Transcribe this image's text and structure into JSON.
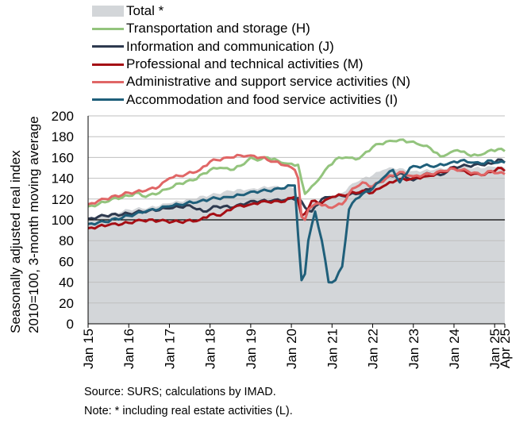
{
  "chart_data": {
    "type": "line",
    "title": "",
    "ylabel_lines": [
      "Seasonally adjusted real index",
      "2010=100, 3-month moving average"
    ],
    "xlabel": "",
    "ylim": [
      0,
      200
    ],
    "yticks": [
      0,
      20,
      40,
      60,
      80,
      100,
      120,
      140,
      160,
      180,
      200
    ],
    "xticks": [
      "Jan 15",
      "Jan 16",
      "Jan 17",
      "Jan 18",
      "Jan 19",
      "Jan 20",
      "Jan 21",
      "Jan 22",
      "Jan 23",
      "Jan 24",
      "Jan 25",
      "Apr 25"
    ],
    "x_range": [
      "2015-01",
      "2025-04"
    ],
    "grid": "horizontal",
    "reference_line": 100,
    "legend_position": "top-left",
    "series": [
      {
        "name": "Total *",
        "type": "area",
        "color": "#d3d6d9",
        "points": [
          [
            "2015-01",
            100
          ],
          [
            "2015-07",
            105
          ],
          [
            "2016-01",
            110
          ],
          [
            "2016-07",
            112
          ],
          [
            "2017-01",
            116
          ],
          [
            "2017-07",
            120
          ],
          [
            "2018-01",
            124
          ],
          [
            "2018-07",
            128
          ],
          [
            "2019-01",
            130
          ],
          [
            "2019-07",
            132
          ],
          [
            "2020-01",
            131
          ],
          [
            "2020-02",
            130
          ],
          [
            "2020-03",
            122
          ],
          [
            "2020-04",
            102
          ],
          [
            "2020-05",
            106
          ],
          [
            "2020-06",
            114
          ],
          [
            "2020-09",
            118
          ],
          [
            "2021-01",
            120
          ],
          [
            "2021-04",
            126
          ],
          [
            "2021-07",
            135
          ],
          [
            "2021-10",
            140
          ],
          [
            "2022-01",
            143
          ],
          [
            "2022-04",
            148
          ],
          [
            "2022-07",
            150
          ],
          [
            "2023-01",
            147
          ],
          [
            "2023-07",
            148
          ],
          [
            "2024-01",
            151
          ],
          [
            "2024-07",
            150
          ],
          [
            "2025-01",
            151
          ],
          [
            "2025-04",
            150
          ]
        ]
      },
      {
        "name": "Transportation and storage (H)",
        "type": "line",
        "color": "#93c47d",
        "points": [
          [
            "2015-01",
            113
          ],
          [
            "2015-04",
            115
          ],
          [
            "2015-08",
            120
          ],
          [
            "2016-01",
            123
          ],
          [
            "2016-03",
            126
          ],
          [
            "2016-06",
            122
          ],
          [
            "2017-01",
            130
          ],
          [
            "2017-04",
            135
          ],
          [
            "2017-08",
            138
          ],
          [
            "2018-01",
            148
          ],
          [
            "2018-04",
            150
          ],
          [
            "2018-07",
            148
          ],
          [
            "2018-10",
            152
          ],
          [
            "2019-01",
            160
          ],
          [
            "2019-03",
            157
          ],
          [
            "2019-06",
            160
          ],
          [
            "2019-09",
            157
          ],
          [
            "2019-12",
            154
          ],
          [
            "2020-03",
            153
          ],
          [
            "2020-04",
            138
          ],
          [
            "2020-05",
            125
          ],
          [
            "2020-06",
            128
          ],
          [
            "2020-08",
            135
          ],
          [
            "2020-11",
            148
          ],
          [
            "2021-02",
            158
          ],
          [
            "2021-05",
            160
          ],
          [
            "2021-08",
            158
          ],
          [
            "2021-10",
            162
          ],
          [
            "2022-01",
            170
          ],
          [
            "2022-03",
            173
          ],
          [
            "2022-06",
            176
          ],
          [
            "2022-09",
            177
          ],
          [
            "2022-12",
            175
          ],
          [
            "2023-03",
            172
          ],
          [
            "2023-06",
            169
          ],
          [
            "2023-09",
            161
          ],
          [
            "2023-12",
            165
          ],
          [
            "2024-02",
            167
          ],
          [
            "2024-05",
            163
          ],
          [
            "2024-08",
            162
          ],
          [
            "2024-11",
            166
          ],
          [
            "2025-02",
            168
          ],
          [
            "2025-04",
            166
          ]
        ]
      },
      {
        "name": "Information and communication (J)",
        "type": "line",
        "color": "#2e3a4f",
        "points": [
          [
            "2015-01",
            101
          ],
          [
            "2015-06",
            104
          ],
          [
            "2016-01",
            106
          ],
          [
            "2016-07",
            109
          ],
          [
            "2017-01",
            111
          ],
          [
            "2017-07",
            114
          ],
          [
            "2017-11",
            108
          ],
          [
            "2018-03",
            113
          ],
          [
            "2018-08",
            112
          ],
          [
            "2019-01",
            118
          ],
          [
            "2019-07",
            118
          ],
          [
            "2019-12",
            120
          ],
          [
            "2020-03",
            121
          ],
          [
            "2020-05",
            112
          ],
          [
            "2020-07",
            108
          ],
          [
            "2020-10",
            120
          ],
          [
            "2021-01",
            122
          ],
          [
            "2021-06",
            124
          ],
          [
            "2021-10",
            127
          ],
          [
            "2022-01",
            132
          ],
          [
            "2022-05",
            140
          ],
          [
            "2022-09",
            145
          ],
          [
            "2023-01",
            138
          ],
          [
            "2023-05",
            145
          ],
          [
            "2023-09",
            143
          ],
          [
            "2024-01",
            151
          ],
          [
            "2024-05",
            152
          ],
          [
            "2024-09",
            153
          ],
          [
            "2024-12",
            154
          ],
          [
            "2025-02",
            158
          ],
          [
            "2025-04",
            155
          ]
        ]
      },
      {
        "name": "Professional and technical activities (M)",
        "type": "line",
        "color": "#a50f15",
        "points": [
          [
            "2015-01",
            92
          ],
          [
            "2015-07",
            95
          ],
          [
            "2016-01",
            97
          ],
          [
            "2016-04",
            100
          ],
          [
            "2016-10",
            99
          ],
          [
            "2017-04",
            98
          ],
          [
            "2017-10",
            100
          ],
          [
            "2018-01",
            105
          ],
          [
            "2018-04",
            104
          ],
          [
            "2018-08",
            112
          ],
          [
            "2019-01",
            115
          ],
          [
            "2019-05",
            118
          ],
          [
            "2019-10",
            117
          ],
          [
            "2020-02",
            122
          ],
          [
            "2020-03",
            118
          ],
          [
            "2020-04",
            104
          ],
          [
            "2020-05",
            106
          ],
          [
            "2020-07",
            118
          ],
          [
            "2020-10",
            116
          ],
          [
            "2021-01",
            122
          ],
          [
            "2021-06",
            125
          ],
          [
            "2021-10",
            128
          ],
          [
            "2022-01",
            126
          ],
          [
            "2022-04",
            132
          ],
          [
            "2022-08",
            138
          ],
          [
            "2023-01",
            140
          ],
          [
            "2023-05",
            142
          ],
          [
            "2023-10",
            146
          ],
          [
            "2024-01",
            150
          ],
          [
            "2024-05",
            145
          ],
          [
            "2024-09",
            143
          ],
          [
            "2024-12",
            146
          ],
          [
            "2025-02",
            150
          ],
          [
            "2025-04",
            147
          ]
        ]
      },
      {
        "name": "Administrative and support service activities (N)",
        "type": "line",
        "color": "#e06666",
        "points": [
          [
            "2015-01",
            115
          ],
          [
            "2015-06",
            120
          ],
          [
            "2016-01",
            126
          ],
          [
            "2016-06",
            128
          ],
          [
            "2016-10",
            132
          ],
          [
            "2017-01",
            140
          ],
          [
            "2017-06",
            144
          ],
          [
            "2017-10",
            148
          ],
          [
            "2018-01",
            156
          ],
          [
            "2018-06",
            160
          ],
          [
            "2018-10",
            162
          ],
          [
            "2019-01",
            162
          ],
          [
            "2019-04",
            160
          ],
          [
            "2019-08",
            156
          ],
          [
            "2019-12",
            152
          ],
          [
            "2020-02",
            148
          ],
          [
            "2020-03",
            140
          ],
          [
            "2020-04",
            103
          ],
          [
            "2020-05",
            100
          ],
          [
            "2020-06",
            110
          ],
          [
            "2020-09",
            116
          ],
          [
            "2020-12",
            112
          ],
          [
            "2021-04",
            115
          ],
          [
            "2021-07",
            130
          ],
          [
            "2021-10",
            136
          ],
          [
            "2022-01",
            132
          ],
          [
            "2022-05",
            140
          ],
          [
            "2022-09",
            146
          ],
          [
            "2023-01",
            142
          ],
          [
            "2023-06",
            144
          ],
          [
            "2023-10",
            147
          ],
          [
            "2024-01",
            149
          ],
          [
            "2024-05",
            147
          ],
          [
            "2024-09",
            143
          ],
          [
            "2024-12",
            147
          ],
          [
            "2025-02",
            145
          ],
          [
            "2025-04",
            144
          ]
        ]
      },
      {
        "name": "Accommodation and food service activities (I)",
        "type": "line",
        "color": "#1f5f7a",
        "points": [
          [
            "2015-01",
            96
          ],
          [
            "2015-06",
            98
          ],
          [
            "2016-01",
            104
          ],
          [
            "2016-06",
            108
          ],
          [
            "2017-01",
            113
          ],
          [
            "2017-06",
            116
          ],
          [
            "2017-10",
            118
          ],
          [
            "2018-01",
            120
          ],
          [
            "2018-06",
            122
          ],
          [
            "2018-10",
            124
          ],
          [
            "2019-01",
            127
          ],
          [
            "2019-06",
            128
          ],
          [
            "2019-10",
            130
          ],
          [
            "2020-01",
            133
          ],
          [
            "2020-02",
            133
          ],
          [
            "2020-03",
            85
          ],
          [
            "2020-04",
            42
          ],
          [
            "2020-05",
            48
          ],
          [
            "2020-06",
            80
          ],
          [
            "2020-08",
            108
          ],
          [
            "2020-10",
            80
          ],
          [
            "2020-12",
            40
          ],
          [
            "2021-02",
            42
          ],
          [
            "2021-04",
            55
          ],
          [
            "2021-06",
            110
          ],
          [
            "2021-08",
            120
          ],
          [
            "2021-10",
            125
          ],
          [
            "2022-01",
            130
          ],
          [
            "2022-04",
            140
          ],
          [
            "2022-07",
            148
          ],
          [
            "2022-09",
            136
          ],
          [
            "2022-12",
            150
          ],
          [
            "2023-04",
            152
          ],
          [
            "2023-08",
            152
          ],
          [
            "2023-12",
            155
          ],
          [
            "2024-03",
            157
          ],
          [
            "2024-06",
            155
          ],
          [
            "2024-09",
            154
          ],
          [
            "2024-12",
            157
          ],
          [
            "2025-02",
            155
          ],
          [
            "2025-04",
            155
          ]
        ]
      }
    ],
    "source": "Source:  SURS; calculations by IMAD.",
    "note": "Note: * including real estate activities (L)."
  }
}
